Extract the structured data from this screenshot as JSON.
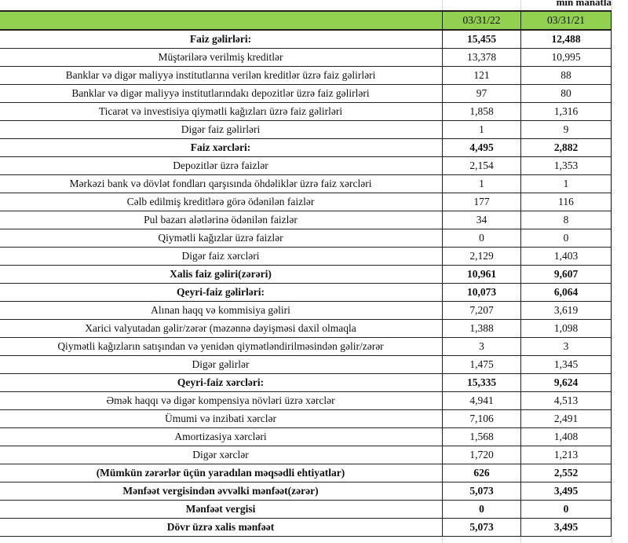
{
  "unit_label": "min manatla",
  "header": {
    "label": "",
    "col1": "03/31/22",
    "col2": "03/31/21"
  },
  "header_color": "#92d050",
  "rows": [
    {
      "label": "Faiz gəlirləri:",
      "v1": "15,455",
      "v2": "12,488",
      "bold": true
    },
    {
      "label": "Müştərilərə verilmiş kreditlər",
      "v1": "13,378",
      "v2": "10,995",
      "bold": false
    },
    {
      "label": "Banklar və digər maliyyə institutlarına verilən kreditlər üzrə faiz gəlirləri",
      "v1": "121",
      "v2": "88",
      "bold": false
    },
    {
      "label": "Banklar və digər maliyyə institutlarındakı depozitlər üzrə faiz gəlirləri",
      "v1": "97",
      "v2": "80",
      "bold": false
    },
    {
      "label": "Ticarət və investisiya qiymətli kağızları üzrə faiz gəlirləri",
      "v1": "1,858",
      "v2": "1,316",
      "bold": false
    },
    {
      "label": "Digər faiz gəlirləri",
      "v1": "1",
      "v2": "9",
      "bold": false
    },
    {
      "label": "Faiz xərcləri:",
      "v1": "4,495",
      "v2": "2,882",
      "bold": true
    },
    {
      "label": "Depozitlər üzrə faizlər",
      "v1": "2,154",
      "v2": "1,353",
      "bold": false
    },
    {
      "label": "Mərkəzi bank və dövlət fondları qarşısında öhdəliklər üzrə faiz xərcləri",
      "v1": "1",
      "v2": "1",
      "bold": false
    },
    {
      "label": "Cəlb edilmiş kreditlərə görə ödənilən faizlər",
      "v1": "177",
      "v2": "116",
      "bold": false
    },
    {
      "label": "Pul bazarı alətlərinə ödənilən faizlər",
      "v1": "34",
      "v2": "8",
      "bold": false
    },
    {
      "label": "Qiymətli kağızlar üzrə faizlər",
      "v1": "0",
      "v2": "0",
      "bold": false
    },
    {
      "label": "Digər faiz xərcləri",
      "v1": "2,129",
      "v2": "1,403",
      "bold": false
    },
    {
      "label": "Xalis faiz gəliri(zərəri)",
      "v1": "10,961",
      "v2": "9,607",
      "bold": true
    },
    {
      "label": "Qeyri-faiz gəlirləri:",
      "v1": "10,073",
      "v2": "6,064",
      "bold": true
    },
    {
      "label": "Alınan haqq və kommisiya gəliri",
      "v1": "7,207",
      "v2": "3,619",
      "bold": false
    },
    {
      "label": "Xarici valyutadan gəlir/zərər (məzənnə dəyişməsi daxil olmaqla",
      "v1": "1,388",
      "v2": "1,098",
      "bold": false
    },
    {
      "label": "Qiymətli kağızların satışından və yenidən qiymətləndirilməsindən gəlir/zərər",
      "v1": "3",
      "v2": "3",
      "bold": false
    },
    {
      "label": "Digər gəlirlər",
      "v1": "1,475",
      "v2": "1,345",
      "bold": false
    },
    {
      "label": "Qeyri-faiz xərcləri:",
      "v1": "15,335",
      "v2": "9,624",
      "bold": true
    },
    {
      "label": "Əmək haqqı və digər kompensiya növləri üzrə xərclər",
      "v1": "4,941",
      "v2": "4,513",
      "bold": false
    },
    {
      "label": "Ümumi və inzibati xərclər",
      "v1": "7,106",
      "v2": "2,491",
      "bold": false
    },
    {
      "label": "Amortizasiya xərcləri",
      "v1": "1,568",
      "v2": "1,408",
      "bold": false
    },
    {
      "label": "Digər xərclər",
      "v1": "1,720",
      "v2": "1,213",
      "bold": false
    },
    {
      "label": "(Mümkün zərərlər üçün yaradılan məqsədli ehtiyatlar)",
      "v1": "626",
      "v2": "2,552",
      "bold": true
    },
    {
      "label": "Mənfəət vergisindən əvvəlki mənfəət(zərər)",
      "v1": "5,073",
      "v2": "3,495",
      "bold": true
    },
    {
      "label": "Mənfəət vergisi",
      "v1": "0",
      "v2": "0",
      "bold": true
    },
    {
      "label": "Dövr üzrə xalis mənfəət",
      "v1": "5,073",
      "v2": "3,495",
      "bold": true
    }
  ]
}
